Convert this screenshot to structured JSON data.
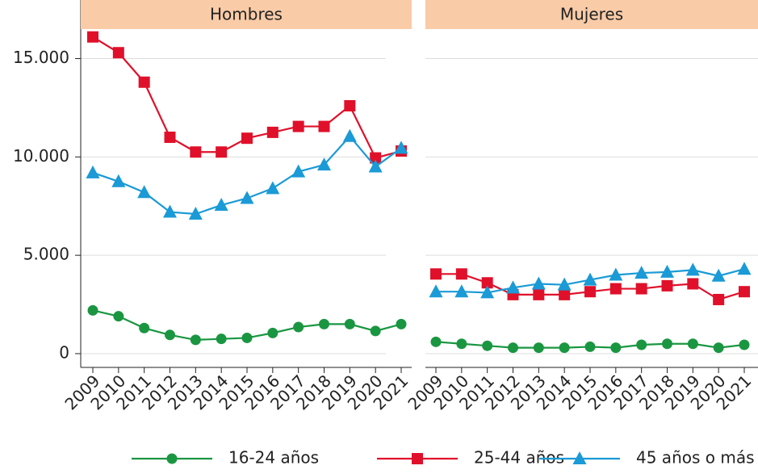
{
  "chart_data": {
    "type": "line",
    "panels": [
      "Hombres",
      "Mujeres"
    ],
    "x": [
      "2009",
      "2010",
      "2011",
      "2012",
      "2013",
      "2014",
      "2015",
      "2016",
      "2017",
      "2018",
      "2019",
      "2020",
      "2021"
    ],
    "ylim": [
      -700,
      16500
    ],
    "yticks": [
      {
        "value": 0,
        "label": "0"
      },
      {
        "value": 5000,
        "label": "5.000"
      },
      {
        "value": 10000,
        "label": "10.000"
      },
      {
        "value": 15000,
        "label": "15.000"
      }
    ],
    "grid": true,
    "legend": "bottom",
    "series": [
      {
        "name": "16-24 años",
        "color": "#1a9641",
        "marker": "circle",
        "values": [
          [
            2200,
            1900,
            1300,
            950,
            700,
            750,
            800,
            1050,
            1350,
            1500,
            1500,
            1150,
            1500
          ],
          [
            600,
            500,
            400,
            300,
            300,
            300,
            350,
            300,
            450,
            500,
            500,
            300,
            450
          ]
        ]
      },
      {
        "name": "25-44 años",
        "color": "#e0102a",
        "marker": "square",
        "values": [
          [
            16100,
            15300,
            13800,
            11000,
            10250,
            10250,
            10950,
            11250,
            11550,
            11550,
            12600,
            9950,
            10300
          ],
          [
            4050,
            4050,
            3600,
            3000,
            3000,
            3000,
            3150,
            3300,
            3300,
            3450,
            3550,
            2750,
            3150
          ]
        ]
      },
      {
        "name": "45 años o más",
        "color": "#1a9ad6",
        "marker": "triangle",
        "values": [
          [
            9200,
            8750,
            8200,
            7200,
            7100,
            7550,
            7900,
            8400,
            9250,
            9600,
            11050,
            9500,
            10450
          ],
          [
            3150,
            3150,
            3100,
            3350,
            3550,
            3500,
            3750,
            4000,
            4100,
            4150,
            4250,
            3950,
            4300
          ]
        ]
      }
    ]
  }
}
